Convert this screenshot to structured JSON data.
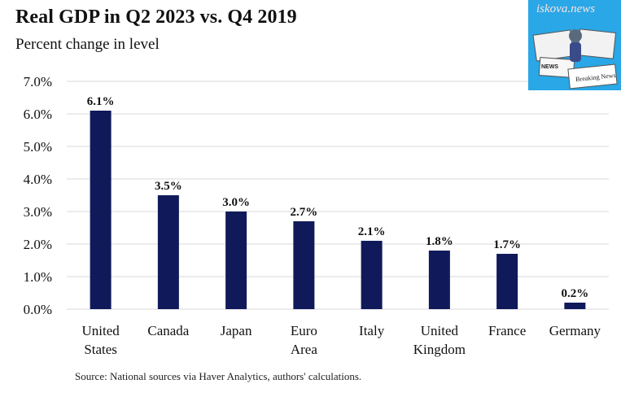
{
  "header": {
    "title": "Real GDP in Q2 2023 vs. Q4 2019",
    "subtitle": "Percent change in level"
  },
  "logo": {
    "text": "iskova.news",
    "paper_headline_1": "NEWS",
    "paper_headline_2": "Breaking News"
  },
  "footer": {
    "source": "Source: National sources via Haver Analytics, authors' calculations."
  },
  "colors": {
    "bar": "#101a5a",
    "grid": "#d9d9d9",
    "logo_bg": "#29a7e6"
  },
  "chart_data": {
    "type": "bar",
    "title": "Real GDP in Q2 2023 vs. Q4 2019",
    "subtitle": "Percent change in level",
    "xlabel": "",
    "ylabel": "",
    "categories": [
      [
        "United",
        "States"
      ],
      [
        "Canada"
      ],
      [
        "Japan"
      ],
      [
        "Euro",
        "Area"
      ],
      [
        "Italy"
      ],
      [
        "United",
        "Kingdom"
      ],
      [
        "France"
      ],
      [
        "Germany"
      ]
    ],
    "values": [
      6.1,
      3.5,
      3.0,
      2.7,
      2.1,
      1.8,
      1.7,
      0.2
    ],
    "data_labels": [
      "6.1%",
      "3.5%",
      "3.0%",
      "2.7%",
      "2.1%",
      "1.8%",
      "1.7%",
      "0.2%"
    ],
    "yticks": [
      "0.0%",
      "1.0%",
      "2.0%",
      "3.0%",
      "4.0%",
      "5.0%",
      "6.0%",
      "7.0%"
    ],
    "ylim": [
      0,
      7
    ],
    "grid": true,
    "legend": "none"
  }
}
